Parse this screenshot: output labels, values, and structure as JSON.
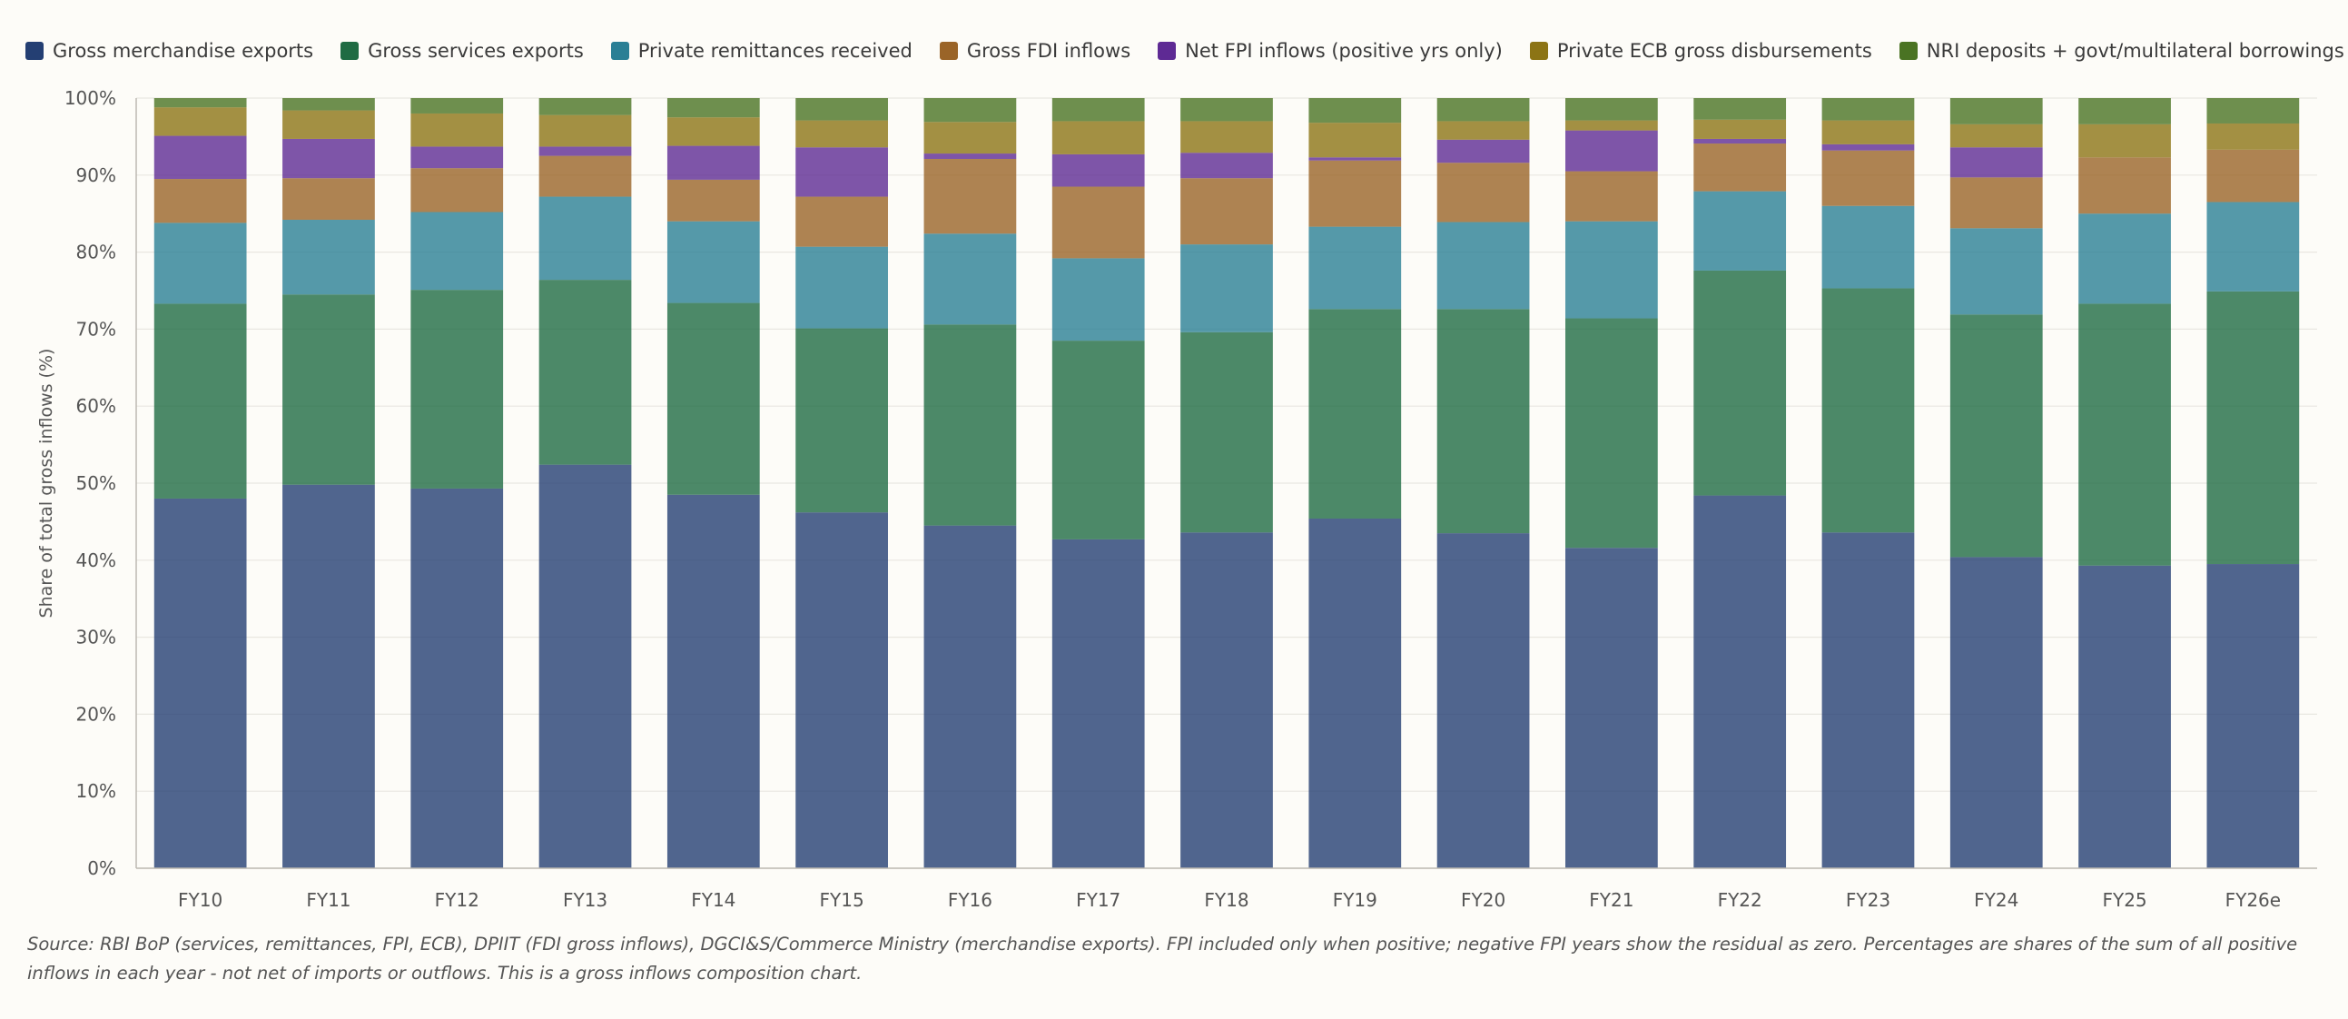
{
  "chart_data": {
    "type": "bar",
    "stacked": true,
    "categories": [
      "FY10",
      "FY11",
      "FY12",
      "FY13",
      "FY14",
      "FY15",
      "FY16",
      "FY17",
      "FY18",
      "FY19",
      "FY20",
      "FY21",
      "FY22",
      "FY23",
      "FY24",
      "FY25",
      "FY26e"
    ],
    "series": [
      {
        "name": "Gross merchandise exports",
        "color": "#243f73",
        "values": [
          48.0,
          49.8,
          49.3,
          52.4,
          48.5,
          46.2,
          44.5,
          42.7,
          43.6,
          45.4,
          43.5,
          41.6,
          48.4,
          43.6,
          40.4,
          39.3,
          39.5
        ]
      },
      {
        "name": "Gross services exports",
        "color": "#1f6b43",
        "values": [
          25.3,
          24.7,
          25.8,
          24.0,
          24.9,
          23.9,
          26.1,
          25.8,
          26.0,
          27.2,
          29.1,
          29.8,
          29.2,
          31.7,
          31.5,
          34.0,
          35.4
        ]
      },
      {
        "name": "Private remittances received",
        "color": "#2a7f95",
        "values": [
          10.5,
          9.7,
          10.1,
          10.8,
          10.6,
          10.6,
          11.8,
          10.7,
          11.4,
          10.7,
          11.3,
          12.6,
          10.3,
          10.7,
          11.2,
          11.7,
          11.6
        ]
      },
      {
        "name": "Gross FDI inflows",
        "color": "#9a6428",
        "values": [
          5.7,
          5.4,
          5.7,
          5.3,
          5.4,
          6.5,
          9.7,
          9.3,
          8.6,
          8.6,
          7.7,
          6.5,
          6.2,
          7.2,
          6.6,
          7.3,
          6.8
        ]
      },
      {
        "name": "Net FPI inflows (positive yrs only)",
        "color": "#5e2a94",
        "values": [
          5.6,
          5.1,
          2.8,
          1.2,
          4.4,
          6.4,
          0.7,
          4.2,
          3.3,
          0.4,
          3.0,
          5.3,
          0.6,
          0.8,
          3.9,
          0.0,
          0.0
        ]
      },
      {
        "name": "Private ECB gross disbursements",
        "color": "#8c7415",
        "values": [
          3.7,
          3.7,
          4.3,
          4.1,
          3.7,
          3.5,
          4.1,
          4.3,
          4.1,
          4.5,
          2.4,
          1.3,
          2.5,
          3.1,
          3.0,
          4.3,
          3.4
        ]
      },
      {
        "name": "NRI deposits + govt/multilateral borrowings",
        "color": "#4a7323",
        "values": [
          1.2,
          1.6,
          2.0,
          2.2,
          2.5,
          2.9,
          3.1,
          3.0,
          3.0,
          3.2,
          3.0,
          2.9,
          2.8,
          2.9,
          3.4,
          3.4,
          3.3
        ]
      }
    ],
    "ylabel": "Share of total gross inflows (%)",
    "xlabel": "",
    "ylim": [
      0,
      100
    ],
    "yticks": [
      "0%",
      "10%",
      "20%",
      "30%",
      "40%",
      "50%",
      "60%",
      "70%",
      "80%",
      "90%",
      "100%"
    ],
    "grid": true,
    "legend": "top"
  },
  "source": "Source: RBI BoP (services, remittances, FPI, ECB), DPIIT (FDI gross inflows), DGCI&S/Commerce Ministry (merchandise exports). FPI included only when positive; negative FPI years show the residual as zero. Percentages are shares of the sum of all positive inflows in each year - not net of imports or outflows. This is a gross inflows composition chart."
}
